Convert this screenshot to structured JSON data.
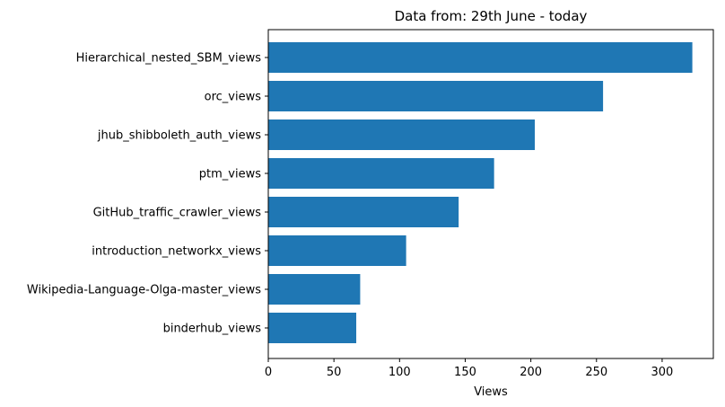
{
  "chart_data": {
    "type": "bar",
    "orientation": "horizontal",
    "title": "Data from: 29th June - today",
    "xlabel": "Views",
    "ylabel": "",
    "categories": [
      "Hierarchical_nested_SBM_views",
      "orc_views",
      "jhub_shibboleth_auth_views",
      "ptm_views",
      "GitHub_traffic_crawler_views",
      "introduction_networkx_views",
      "Wikipedia-Language-Olga-master_views",
      "binderhub_views"
    ],
    "values": [
      323,
      255,
      203,
      172,
      145,
      105,
      70,
      67
    ],
    "xlim": [
      0,
      339
    ],
    "xticks": [
      "0",
      "50",
      "100",
      "150",
      "200",
      "250",
      "300"
    ],
    "grid": false,
    "legend": "none",
    "bar_color": "#1f77b4"
  }
}
